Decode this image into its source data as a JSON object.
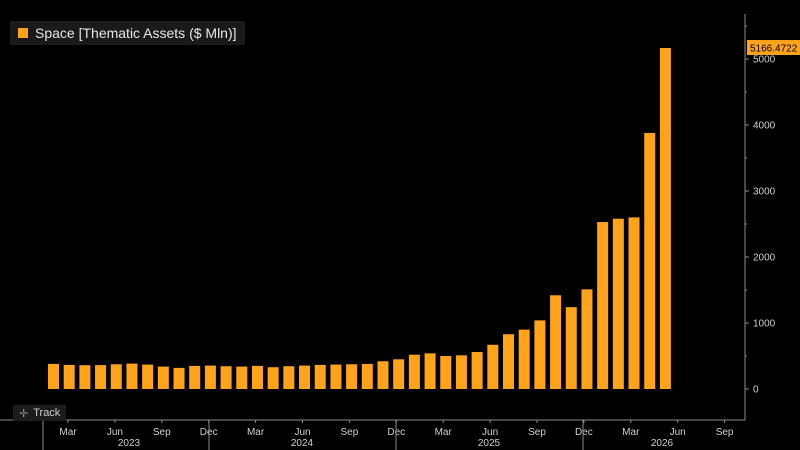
{
  "legend": {
    "label": "Space [Thematic Assets ($ Mln)]"
  },
  "track": {
    "label": "Track"
  },
  "colors": {
    "bar": "#ffa31a",
    "background": "#000000",
    "axis": "#8c8c8c"
  },
  "chart_data": {
    "type": "bar",
    "series": [
      {
        "name": "Space [Thematic Assets ($ Mln)]",
        "values": [
          380,
          365,
          360,
          362,
          375,
          385,
          370,
          340,
          320,
          350,
          355,
          345,
          340,
          350,
          330,
          345,
          355,
          365,
          370,
          375,
          380,
          420,
          450,
          520,
          540,
          500,
          510,
          560,
          670,
          830,
          900,
          1040,
          1420,
          1240,
          1510,
          2530,
          2580,
          2600,
          3880,
          5166.4722
        ]
      }
    ],
    "last_value_label": "5166.4722",
    "ylim": [
      -100,
      5600
    ],
    "y_ticks": [
      0,
      1000,
      2000,
      3000,
      4000,
      5000
    ],
    "y_tick_labels": [
      "0",
      "1000",
      "2000",
      "3000",
      "4000",
      "5000"
    ],
    "x_month_labels": [
      "Mar",
      "Jun",
      "Sep",
      "Dec",
      "Mar",
      "Jun",
      "Sep",
      "Dec",
      "Mar",
      "Jun",
      "Sep",
      "Dec",
      "Mar",
      "Jun",
      "Sep"
    ],
    "x_year_labels": [
      "2023",
      "2024",
      "2025",
      "2026"
    ],
    "grid": false,
    "legend_position": "top-left"
  }
}
